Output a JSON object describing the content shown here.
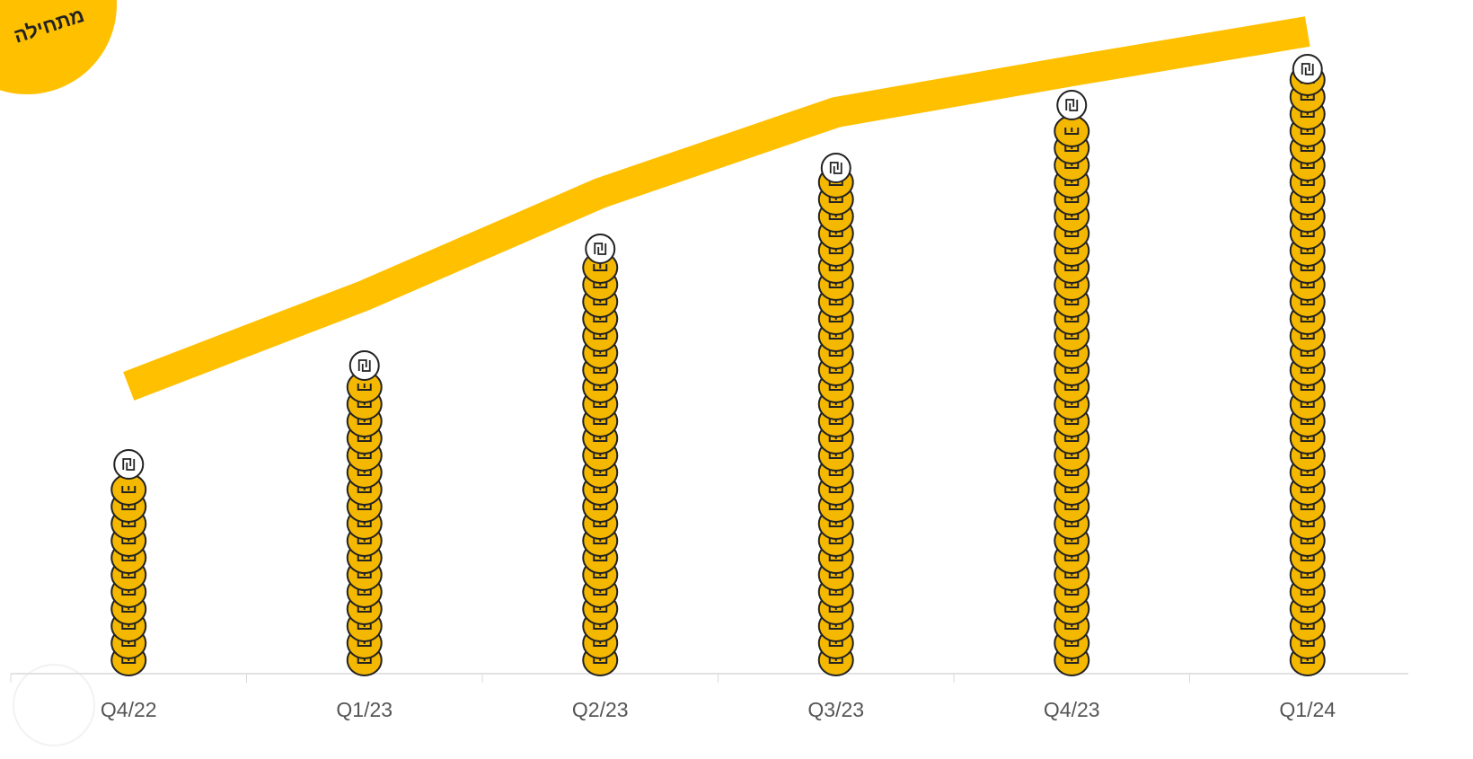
{
  "chart_data": {
    "type": "bar",
    "badge": "מתחילה",
    "categories": [
      "Q4/22",
      "Q1/23",
      "Q2/23",
      "Q3/23",
      "Q4/23",
      "Q1/24"
    ],
    "series": [
      {
        "type": "bar",
        "color": "#F5B800",
        "values": [
          24,
          35,
          48,
          57,
          64,
          68
        ]
      },
      {
        "type": "line",
        "color": "#FFC000",
        "values": [
          31.5,
          41.6,
          53,
          62,
          66.6,
          71
        ]
      }
    ],
    "ylim": [
      0,
      74.5
    ]
  }
}
